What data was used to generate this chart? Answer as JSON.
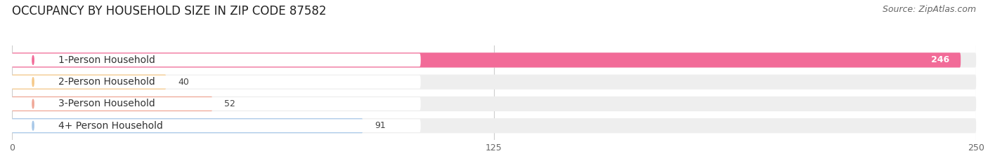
{
  "title": "OCCUPANCY BY HOUSEHOLD SIZE IN ZIP CODE 87582",
  "source": "Source: ZipAtlas.com",
  "categories": [
    "1-Person Household",
    "2-Person Household",
    "3-Person Household",
    "4+ Person Household"
  ],
  "values": [
    246,
    40,
    52,
    91
  ],
  "bar_colors": [
    "#F26B98",
    "#F5C98A",
    "#F0A898",
    "#A8C8E8"
  ],
  "xlim": [
    0,
    250
  ],
  "xticks": [
    0,
    125,
    250
  ],
  "background_color": "#ffffff",
  "bar_background_color": "#eeeeee",
  "title_fontsize": 12,
  "source_fontsize": 9,
  "label_fontsize": 10,
  "value_fontsize": 9
}
